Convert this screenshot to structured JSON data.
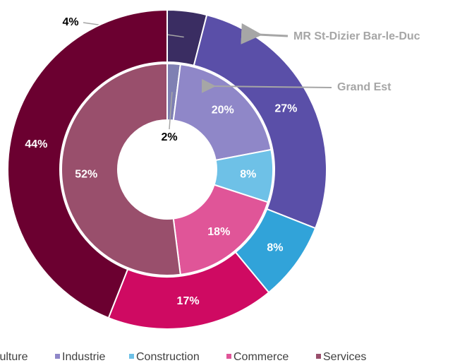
{
  "chart_data": {
    "type": "donut",
    "categories": [
      "Agriculture",
      "Industrie",
      "Construction",
      "Commerce",
      "Services"
    ],
    "series": [
      {
        "name": "MR St-Dizier Bar-le-Duc",
        "colors": [
          "#3a2d62",
          "#5a4fa8",
          "#31a3d9",
          "#cf0a62",
          "#6b0030"
        ],
        "values": [
          4,
          27,
          8,
          17,
          44
        ],
        "value_labels": [
          "4%",
          "27%",
          "8%",
          "17%",
          "44%"
        ]
      },
      {
        "name": "Grand Est",
        "colors": [
          "#7f80b3",
          "#8f87c8",
          "#6ec1e7",
          "#e05598",
          "#994f6c"
        ],
        "values": [
          2,
          20,
          8,
          18,
          52
        ],
        "value_labels": [
          "2%",
          "20%",
          "8%",
          "18%",
          "52%"
        ]
      }
    ]
  }
}
